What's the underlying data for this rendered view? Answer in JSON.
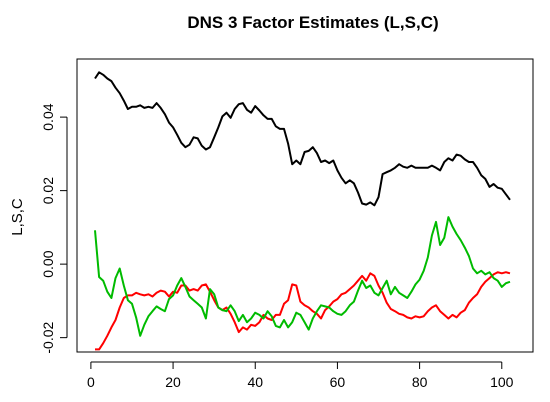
{
  "chart_data": {
    "type": "line",
    "title": "DNS 3 Factor Estimates (L,S,C)",
    "xlabel": "",
    "ylabel": "L,S,C",
    "xlim": [
      1,
      102
    ],
    "ylim": [
      -0.022,
      0.052
    ],
    "x_ticks": [
      0,
      20,
      40,
      60,
      80,
      100
    ],
    "x_tick_labels": [
      "0",
      "20",
      "40",
      "60",
      "80",
      "100"
    ],
    "y_ticks": [
      -0.02,
      0.0,
      0.02,
      0.04
    ],
    "y_tick_labels": [
      "-0.02",
      "0.00",
      "0.02",
      "0.04"
    ],
    "grid": false,
    "legend": "none",
    "series": [
      {
        "color": "#000000",
        "points": [
          [
            1,
            0.0505
          ],
          [
            2,
            0.0522
          ],
          [
            3,
            0.0515
          ],
          [
            4,
            0.0505
          ],
          [
            5,
            0.0498
          ],
          [
            6,
            0.048
          ],
          [
            7,
            0.0465
          ],
          [
            8,
            0.0445
          ],
          [
            9,
            0.0422
          ],
          [
            10,
            0.0428
          ],
          [
            11,
            0.0428
          ],
          [
            12,
            0.0432
          ],
          [
            13,
            0.0425
          ],
          [
            14,
            0.0428
          ],
          [
            15,
            0.0425
          ],
          [
            16,
            0.0438
          ],
          [
            17,
            0.0425
          ],
          [
            18,
            0.0408
          ],
          [
            19,
            0.0385
          ],
          [
            20,
            0.0372
          ],
          [
            21,
            0.0352
          ],
          [
            22,
            0.033
          ],
          [
            23,
            0.0318
          ],
          [
            24,
            0.0325
          ],
          [
            25,
            0.0345
          ],
          [
            26,
            0.0342
          ],
          [
            27,
            0.0322
          ],
          [
            28,
            0.0312
          ],
          [
            29,
            0.0318
          ],
          [
            30,
            0.0345
          ],
          [
            31,
            0.0372
          ],
          [
            32,
            0.0402
          ],
          [
            33,
            0.0412
          ],
          [
            34,
            0.0398
          ],
          [
            35,
            0.0422
          ],
          [
            36,
            0.0435
          ],
          [
            37,
            0.0438
          ],
          [
            38,
            0.042
          ],
          [
            39,
            0.0412
          ],
          [
            40,
            0.043
          ],
          [
            41,
            0.0418
          ],
          [
            42,
            0.0405
          ],
          [
            43,
            0.0395
          ],
          [
            44,
            0.0395
          ],
          [
            45,
            0.0375
          ],
          [
            46,
            0.0368
          ],
          [
            47,
            0.0368
          ],
          [
            48,
            0.0328
          ],
          [
            49,
            0.0272
          ],
          [
            50,
            0.0282
          ],
          [
            51,
            0.0272
          ],
          [
            52,
            0.0305
          ],
          [
            53,
            0.0308
          ],
          [
            54,
            0.0318
          ],
          [
            55,
            0.0302
          ],
          [
            56,
            0.0278
          ],
          [
            57,
            0.0282
          ],
          [
            58,
            0.0275
          ],
          [
            59,
            0.0282
          ],
          [
            60,
            0.0255
          ],
          [
            61,
            0.0235
          ],
          [
            62,
            0.022
          ],
          [
            63,
            0.0228
          ],
          [
            64,
            0.022
          ],
          [
            65,
            0.0195
          ],
          [
            66,
            0.0165
          ],
          [
            67,
            0.0162
          ],
          [
            68,
            0.0168
          ],
          [
            69,
            0.016
          ],
          [
            70,
            0.0182
          ],
          [
            71,
            0.0245
          ],
          [
            72,
            0.025
          ],
          [
            73,
            0.0255
          ],
          [
            74,
            0.0262
          ],
          [
            75,
            0.0272
          ],
          [
            76,
            0.0265
          ],
          [
            77,
            0.0262
          ],
          [
            78,
            0.0268
          ],
          [
            79,
            0.0262
          ],
          [
            80,
            0.0262
          ],
          [
            81,
            0.0262
          ],
          [
            82,
            0.0262
          ],
          [
            83,
            0.0268
          ],
          [
            84,
            0.0262
          ],
          [
            85,
            0.0255
          ],
          [
            86,
            0.0278
          ],
          [
            87,
            0.0288
          ],
          [
            88,
            0.0282
          ],
          [
            89,
            0.0298
          ],
          [
            90,
            0.0295
          ],
          [
            91,
            0.0285
          ],
          [
            92,
            0.0278
          ],
          [
            93,
            0.0278
          ],
          [
            94,
            0.0262
          ],
          [
            95,
            0.0242
          ],
          [
            96,
            0.0232
          ],
          [
            97,
            0.021
          ],
          [
            98,
            0.0218
          ],
          [
            99,
            0.0208
          ],
          [
            100,
            0.0205
          ],
          [
            101,
            0.019
          ],
          [
            102,
            0.0175
          ]
        ]
      },
      {
        "color": "#ff0000",
        "points": [
          [
            1,
            -0.0232
          ],
          [
            2,
            -0.0232
          ],
          [
            3,
            -0.0215
          ],
          [
            4,
            -0.0195
          ],
          [
            5,
            -0.0172
          ],
          [
            6,
            -0.0152
          ],
          [
            7,
            -0.0118
          ],
          [
            8,
            -0.0092
          ],
          [
            9,
            -0.0085
          ],
          [
            10,
            -0.0085
          ],
          [
            11,
            -0.0078
          ],
          [
            12,
            -0.0082
          ],
          [
            13,
            -0.0085
          ],
          [
            14,
            -0.0082
          ],
          [
            15,
            -0.0088
          ],
          [
            16,
            -0.0078
          ],
          [
            17,
            -0.0072
          ],
          [
            18,
            -0.0075
          ],
          [
            19,
            -0.0088
          ],
          [
            20,
            -0.0075
          ],
          [
            21,
            -0.0078
          ],
          [
            22,
            -0.0058
          ],
          [
            23,
            -0.0058
          ],
          [
            24,
            -0.0072
          ],
          [
            25,
            -0.0068
          ],
          [
            26,
            -0.0072
          ],
          [
            27,
            -0.0058
          ],
          [
            28,
            -0.0055
          ],
          [
            29,
            -0.0075
          ],
          [
            30,
            -0.0098
          ],
          [
            31,
            -0.0118
          ],
          [
            32,
            -0.0125
          ],
          [
            33,
            -0.0118
          ],
          [
            34,
            -0.0135
          ],
          [
            35,
            -0.0158
          ],
          [
            36,
            -0.0185
          ],
          [
            37,
            -0.0172
          ],
          [
            38,
            -0.0178
          ],
          [
            39,
            -0.0165
          ],
          [
            40,
            -0.0168
          ],
          [
            41,
            -0.0158
          ],
          [
            42,
            -0.0138
          ],
          [
            43,
            -0.0148
          ],
          [
            44,
            -0.0152
          ],
          [
            45,
            -0.0138
          ],
          [
            46,
            -0.0138
          ],
          [
            47,
            -0.0108
          ],
          [
            48,
            -0.0098
          ],
          [
            49,
            -0.0055
          ],
          [
            50,
            -0.0058
          ],
          [
            51,
            -0.0102
          ],
          [
            52,
            -0.0112
          ],
          [
            53,
            -0.0118
          ],
          [
            54,
            -0.0128
          ],
          [
            55,
            -0.0135
          ],
          [
            56,
            -0.0148
          ],
          [
            57,
            -0.0125
          ],
          [
            58,
            -0.0115
          ],
          [
            59,
            -0.0102
          ],
          [
            60,
            -0.0095
          ],
          [
            61,
            -0.0082
          ],
          [
            62,
            -0.0078
          ],
          [
            63,
            -0.0068
          ],
          [
            64,
            -0.0058
          ],
          [
            65,
            -0.0045
          ],
          [
            66,
            -0.0032
          ],
          [
            67,
            -0.0045
          ],
          [
            68,
            -0.0025
          ],
          [
            69,
            -0.0032
          ],
          [
            70,
            -0.0058
          ],
          [
            71,
            -0.0078
          ],
          [
            72,
            -0.0105
          ],
          [
            73,
            -0.0122
          ],
          [
            74,
            -0.0128
          ],
          [
            75,
            -0.0135
          ],
          [
            76,
            -0.0138
          ],
          [
            77,
            -0.0145
          ],
          [
            78,
            -0.0148
          ],
          [
            79,
            -0.0142
          ],
          [
            80,
            -0.0145
          ],
          [
            81,
            -0.0142
          ],
          [
            82,
            -0.0128
          ],
          [
            83,
            -0.0118
          ],
          [
            84,
            -0.0112
          ],
          [
            85,
            -0.0128
          ],
          [
            86,
            -0.0138
          ],
          [
            87,
            -0.0148
          ],
          [
            88,
            -0.0138
          ],
          [
            89,
            -0.0145
          ],
          [
            90,
            -0.0132
          ],
          [
            91,
            -0.0125
          ],
          [
            92,
            -0.0105
          ],
          [
            93,
            -0.0092
          ],
          [
            94,
            -0.0082
          ],
          [
            95,
            -0.0062
          ],
          [
            96,
            -0.0048
          ],
          [
            97,
            -0.0038
          ],
          [
            98,
            -0.0028
          ],
          [
            99,
            -0.0022
          ],
          [
            100,
            -0.0025
          ],
          [
            101,
            -0.0022
          ],
          [
            102,
            -0.0025
          ]
        ]
      },
      {
        "color": "#00bb00",
        "points": [
          [
            1,
            0.0092
          ],
          [
            2,
            -0.0035
          ],
          [
            3,
            -0.0045
          ],
          [
            4,
            -0.0075
          ],
          [
            5,
            -0.0092
          ],
          [
            6,
            -0.0038
          ],
          [
            7,
            -0.0012
          ],
          [
            8,
            -0.0058
          ],
          [
            9,
            -0.0098
          ],
          [
            10,
            -0.0108
          ],
          [
            11,
            -0.0145
          ],
          [
            12,
            -0.0195
          ],
          [
            13,
            -0.0165
          ],
          [
            14,
            -0.0142
          ],
          [
            15,
            -0.0128
          ],
          [
            16,
            -0.0115
          ],
          [
            17,
            -0.0122
          ],
          [
            18,
            -0.0128
          ],
          [
            19,
            -0.0095
          ],
          [
            20,
            -0.0085
          ],
          [
            21,
            -0.0058
          ],
          [
            22,
            -0.0038
          ],
          [
            23,
            -0.0062
          ],
          [
            24,
            -0.0088
          ],
          [
            25,
            -0.0098
          ],
          [
            26,
            -0.0108
          ],
          [
            27,
            -0.0118
          ],
          [
            28,
            -0.0148
          ],
          [
            29,
            -0.0068
          ],
          [
            30,
            -0.0082
          ],
          [
            31,
            -0.0118
          ],
          [
            32,
            -0.0125
          ],
          [
            33,
            -0.0128
          ],
          [
            34,
            -0.0112
          ],
          [
            35,
            -0.0128
          ],
          [
            36,
            -0.0155
          ],
          [
            37,
            -0.0138
          ],
          [
            38,
            -0.0158
          ],
          [
            39,
            -0.0148
          ],
          [
            40,
            -0.0132
          ],
          [
            41,
            -0.0138
          ],
          [
            42,
            -0.0148
          ],
          [
            43,
            -0.0128
          ],
          [
            44,
            -0.0142
          ],
          [
            45,
            -0.0168
          ],
          [
            46,
            -0.0172
          ],
          [
            47,
            -0.0152
          ],
          [
            48,
            -0.0172
          ],
          [
            49,
            -0.0158
          ],
          [
            50,
            -0.0132
          ],
          [
            51,
            -0.0138
          ],
          [
            52,
            -0.0158
          ],
          [
            53,
            -0.0178
          ],
          [
            54,
            -0.0148
          ],
          [
            55,
            -0.0128
          ],
          [
            56,
            -0.0112
          ],
          [
            57,
            -0.0115
          ],
          [
            58,
            -0.0118
          ],
          [
            59,
            -0.0128
          ],
          [
            60,
            -0.0135
          ],
          [
            61,
            -0.0138
          ],
          [
            62,
            -0.0128
          ],
          [
            63,
            -0.0112
          ],
          [
            64,
            -0.0102
          ],
          [
            65,
            -0.0072
          ],
          [
            66,
            -0.0045
          ],
          [
            67,
            -0.0065
          ],
          [
            68,
            -0.0058
          ],
          [
            69,
            -0.0078
          ],
          [
            70,
            -0.0085
          ],
          [
            71,
            -0.0065
          ],
          [
            72,
            -0.0045
          ],
          [
            73,
            -0.0082
          ],
          [
            74,
            -0.0062
          ],
          [
            75,
            -0.0078
          ],
          [
            76,
            -0.0085
          ],
          [
            77,
            -0.0092
          ],
          [
            78,
            -0.0075
          ],
          [
            79,
            -0.0055
          ],
          [
            80,
            -0.0042
          ],
          [
            81,
            -0.0018
          ],
          [
            82,
            0.0018
          ],
          [
            83,
            0.0078
          ],
          [
            84,
            0.0115
          ],
          [
            85,
            0.0052
          ],
          [
            86,
            0.0072
          ],
          [
            87,
            0.0128
          ],
          [
            88,
            0.0102
          ],
          [
            89,
            0.0082
          ],
          [
            90,
            0.0065
          ],
          [
            91,
            0.0045
          ],
          [
            92,
            0.0022
          ],
          [
            93,
            -0.0012
          ],
          [
            94,
            -0.0025
          ],
          [
            95,
            -0.0018
          ],
          [
            96,
            -0.0028
          ],
          [
            97,
            -0.0022
          ],
          [
            98,
            -0.0038
          ],
          [
            99,
            -0.0045
          ],
          [
            100,
            -0.0062
          ],
          [
            101,
            -0.0052
          ],
          [
            102,
            -0.0048
          ]
        ]
      }
    ]
  }
}
